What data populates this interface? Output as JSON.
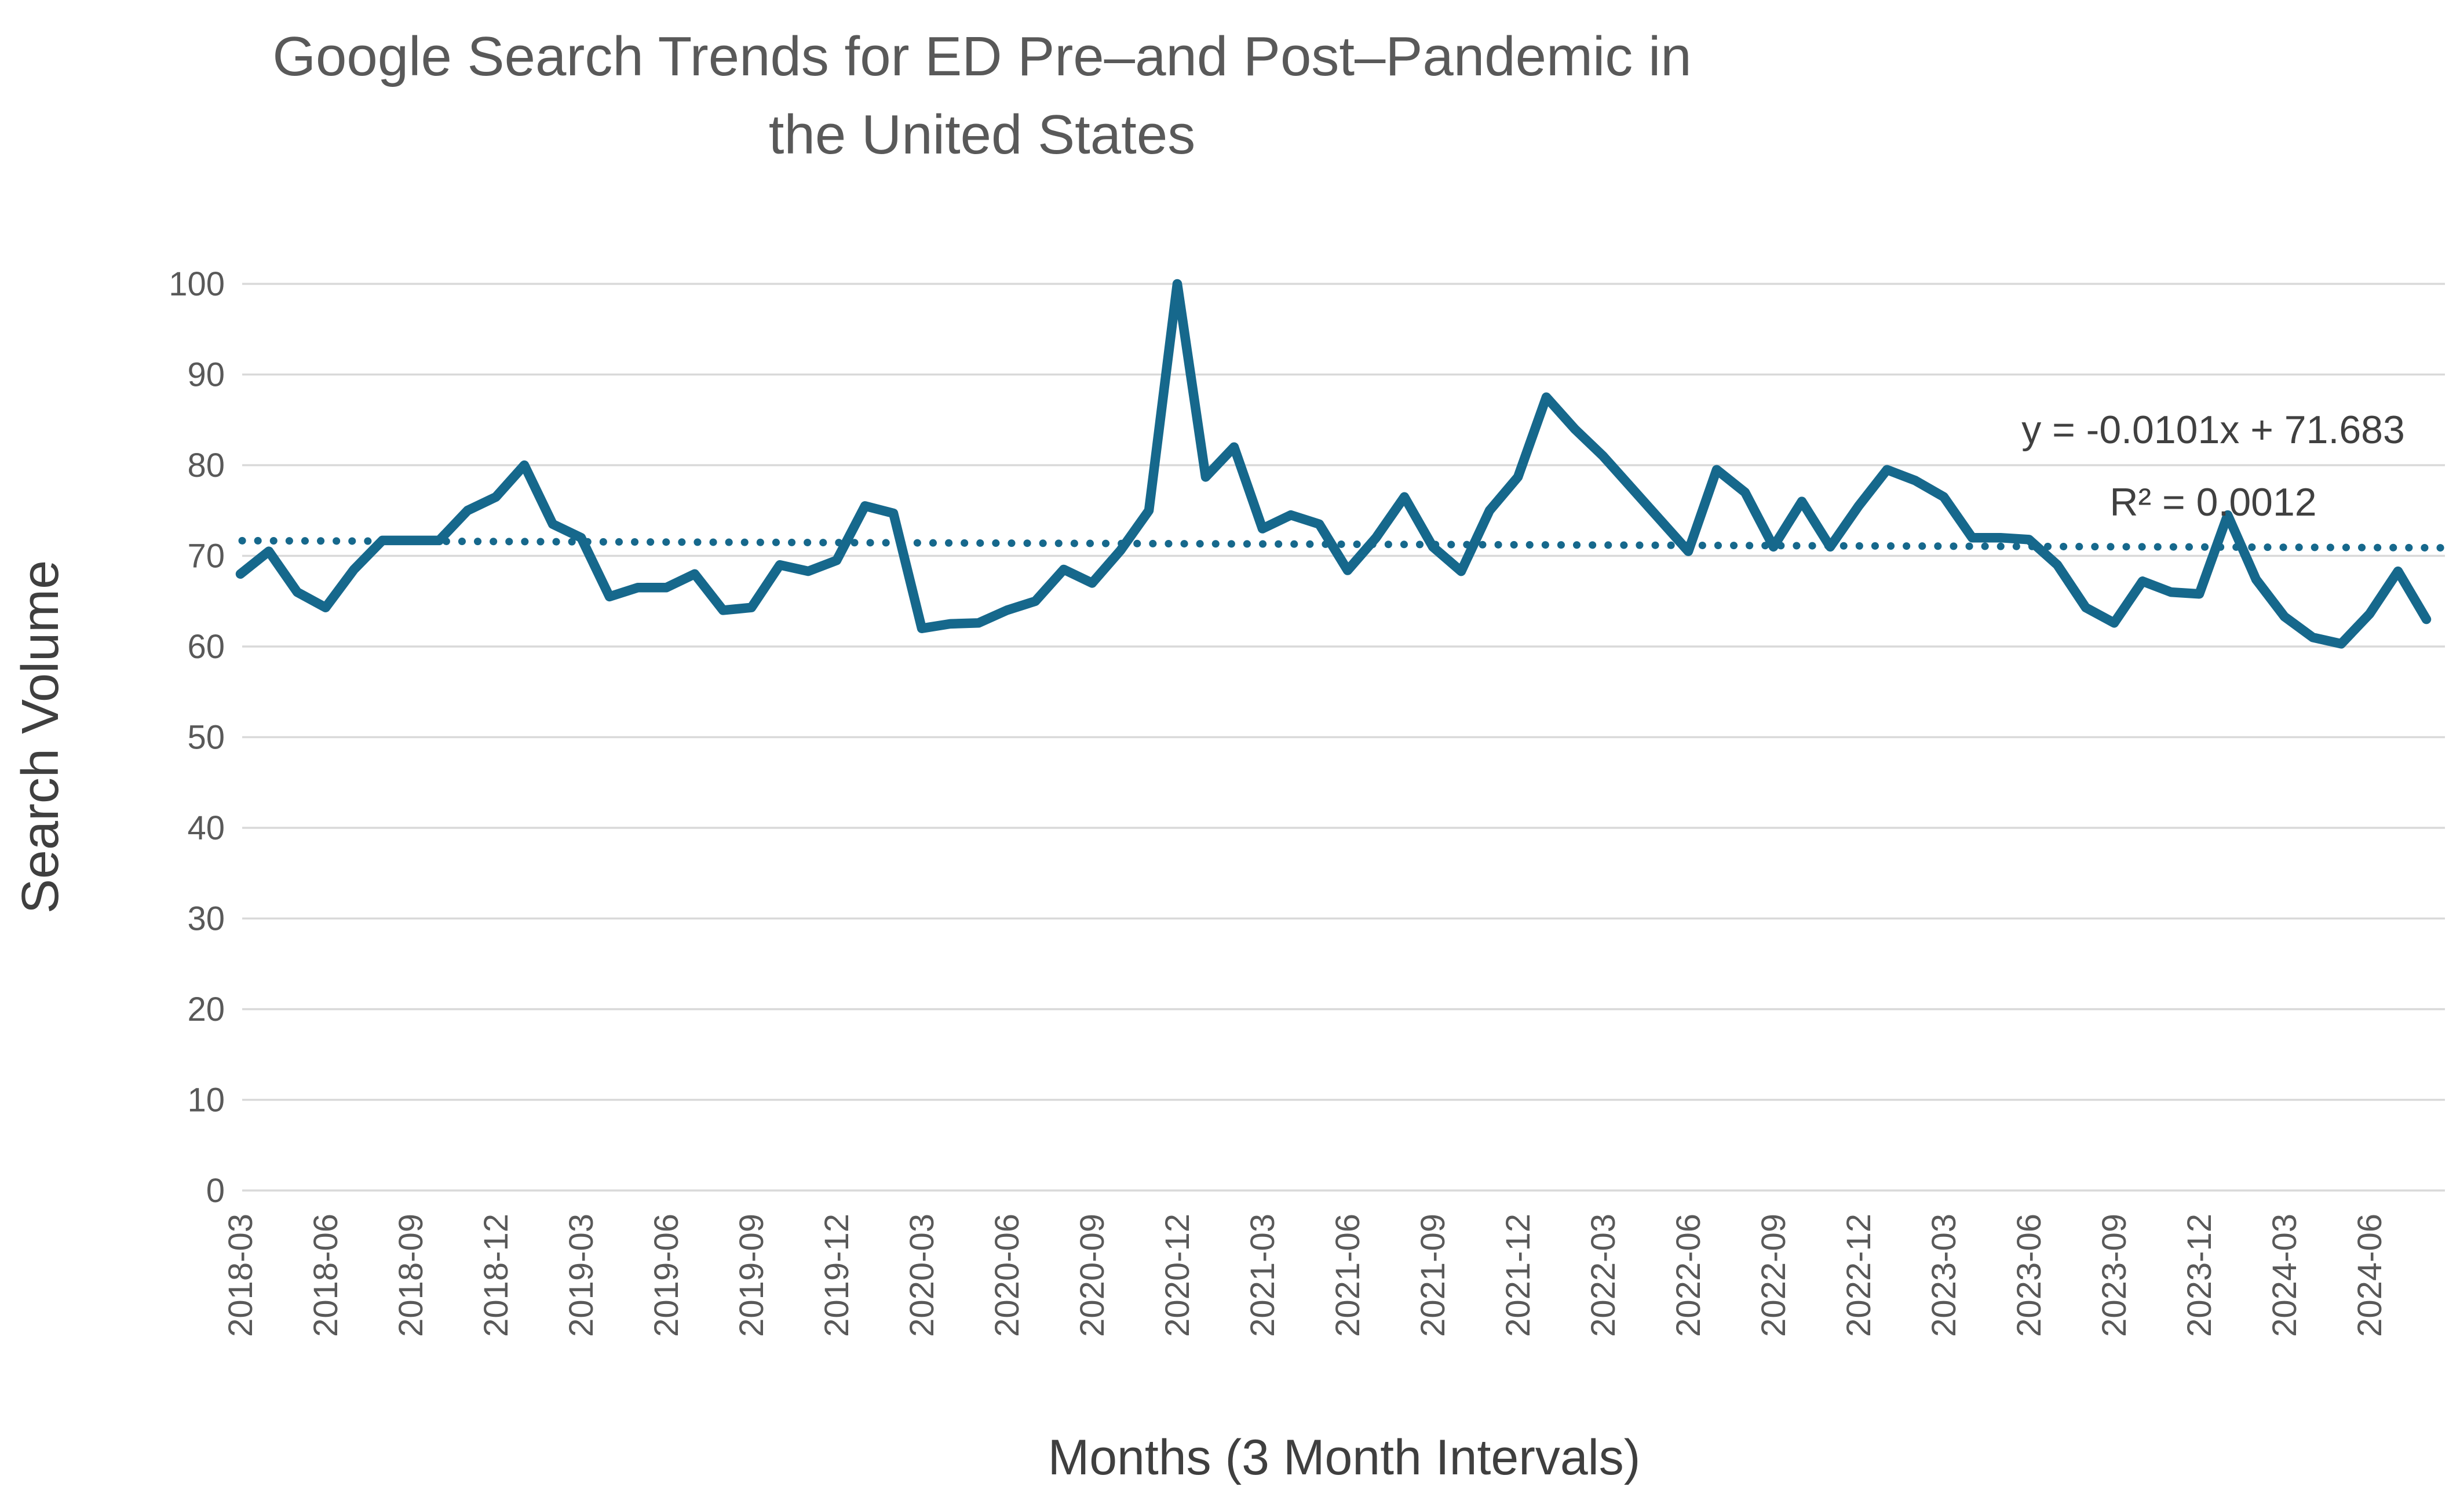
{
  "title": {
    "line1": "Google Search Trends for ED Pre–and Post–Pandemic in",
    "line2": "the United States"
  },
  "chart_data": {
    "type": "line",
    "title": "Google Search Trends for ED Pre–and Post–Pandemic in the United States",
    "xlabel": "Months (3 Month Intervals)",
    "ylabel": "Search Volume",
    "ylim": [
      0,
      100
    ],
    "ytick_step": 10,
    "ytick_labels": [
      "0",
      "10",
      "20",
      "30",
      "40",
      "50",
      "60",
      "70",
      "80",
      "90",
      "100"
    ],
    "grid": "horizontal",
    "legend_position": "none",
    "x_tick_interval_months": 3,
    "x_tick_labels": [
      "2018-03",
      "2018-06",
      "2018-09",
      "2018-12",
      "2019-03",
      "2019-06",
      "2019-09",
      "2019-12",
      "2020-03",
      "2020-06",
      "2020-09",
      "2020-12",
      "2021-03",
      "2021-06",
      "2021-09",
      "2021-12",
      "2022-03",
      "2022-06",
      "2022-09",
      "2022-12",
      "2023-03",
      "2023-06",
      "2023-09",
      "2023-12",
      "2024-03",
      "2024-06"
    ],
    "months": [
      "2018-03",
      "2018-04",
      "2018-05",
      "2018-06",
      "2018-07",
      "2018-08",
      "2018-09",
      "2018-10",
      "2018-11",
      "2018-12",
      "2019-01",
      "2019-02",
      "2019-03",
      "2019-04",
      "2019-05",
      "2019-06",
      "2019-07",
      "2019-08",
      "2019-09",
      "2019-10",
      "2019-11",
      "2019-12",
      "2020-01",
      "2020-02",
      "2020-03",
      "2020-04",
      "2020-05",
      "2020-06",
      "2020-07",
      "2020-08",
      "2020-09",
      "2020-10",
      "2020-11",
      "2020-12",
      "2021-01",
      "2021-02",
      "2021-03",
      "2021-04",
      "2021-05",
      "2021-06",
      "2021-07",
      "2021-08",
      "2021-09",
      "2021-10",
      "2021-11",
      "2021-12",
      "2022-01",
      "2022-02",
      "2022-03",
      "2022-04",
      "2022-05",
      "2022-06",
      "2022-07",
      "2022-08",
      "2022-09",
      "2022-10",
      "2022-11",
      "2022-12",
      "2023-01",
      "2023-02",
      "2023-03",
      "2023-04",
      "2023-05",
      "2023-06",
      "2023-07",
      "2023-08",
      "2023-09",
      "2023-10",
      "2023-11",
      "2023-12",
      "2024-01",
      "2024-02",
      "2024-03",
      "2024-04",
      "2024-05",
      "2024-06",
      "2024-07",
      "2024-08"
    ],
    "values": [
      68,
      70.5,
      66,
      64.3,
      68.5,
      71.7,
      71.7,
      71.7,
      75,
      76.5,
      80,
      73.5,
      72,
      65.5,
      66.5,
      66.5,
      68,
      64,
      64.3,
      69,
      68.3,
      69.5,
      75.5,
      74.7,
      62,
      62.5,
      62.6,
      64,
      65,
      68.5,
      67,
      70.6,
      75,
      100,
      78.7,
      82,
      73,
      74.5,
      73.5,
      68.4,
      72,
      76.5,
      71,
      68.3,
      75,
      78.7,
      87.5,
      84,
      81,
      77.5,
      74,
      70.5,
      79.5,
      77,
      71,
      76,
      71,
      75.5,
      79.5,
      78.3,
      76.5,
      72,
      72,
      71.8,
      69,
      64.3,
      62.6,
      67.2,
      66,
      65.8,
      74.5,
      67.4,
      63.3,
      61,
      60.3,
      63.6,
      68.3,
      63
    ],
    "series_name": "Search Volume",
    "trendline": {
      "label_line1": "y = -0.0101x + 71.683",
      "label_line2": "R² = 0.0012",
      "slope": -0.0101,
      "intercept": 71.683,
      "style": "dotted"
    },
    "colors": {
      "line": "#16688C",
      "trendline": "#16688C",
      "gridline": "#D9D9D9",
      "title_text": "#595959",
      "tick_text": "#595959",
      "axis_title_text": "#3F3F3F",
      "equation_text": "#404040",
      "background": "#FFFFFF"
    }
  }
}
